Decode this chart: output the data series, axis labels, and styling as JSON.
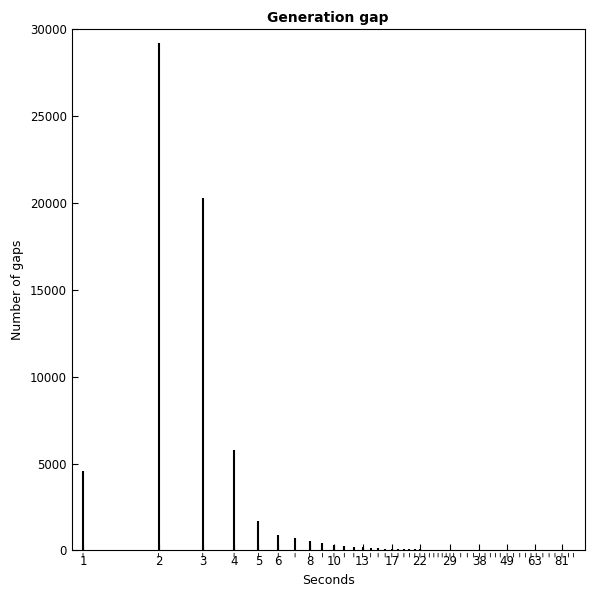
{
  "title": "Generation gap",
  "xlabel": "Seconds",
  "ylabel": "Number of gaps",
  "bar_color": "#000000",
  "background_color": "#ffffff",
  "yticks": [
    0,
    5000,
    10000,
    15000,
    20000,
    25000,
    30000
  ],
  "ylim": [
    0,
    30000
  ],
  "xtick_labels": [
    "1",
    "2",
    "3",
    "4",
    "5",
    "6",
    "8",
    "10",
    "13",
    "17",
    "22",
    "29",
    "38",
    "49",
    "63",
    "81"
  ],
  "xtick_positions": [
    1,
    2,
    3,
    4,
    5,
    6,
    8,
    10,
    13,
    17,
    22,
    29,
    38,
    49,
    63,
    81
  ],
  "bar_positions": [
    1,
    2,
    3,
    4,
    5,
    6,
    7,
    8,
    9,
    10,
    11,
    12,
    13,
    14,
    15,
    16,
    17,
    18,
    19,
    20,
    21,
    22,
    23,
    24,
    25,
    26,
    27,
    28,
    29,
    30,
    32,
    34,
    36,
    38,
    40,
    42,
    44,
    46,
    49,
    52,
    55,
    58,
    61,
    64,
    68,
    72,
    76,
    81,
    86,
    90
  ],
  "bar_heights": [
    4600,
    29200,
    20300,
    5800,
    1700,
    900,
    700,
    550,
    420,
    340,
    270,
    210,
    175,
    150,
    130,
    110,
    95,
    85,
    75,
    68,
    62,
    56,
    51,
    47,
    43,
    40,
    37,
    34,
    32,
    30,
    27,
    24,
    22,
    20,
    18,
    16,
    15,
    14,
    12,
    11,
    10,
    9,
    8,
    8,
    7,
    6,
    6,
    5,
    5,
    4
  ],
  "xlim_log": [
    0.9,
    100
  ],
  "figwidth": 5.96,
  "figheight": 5.98,
  "dpi": 100
}
